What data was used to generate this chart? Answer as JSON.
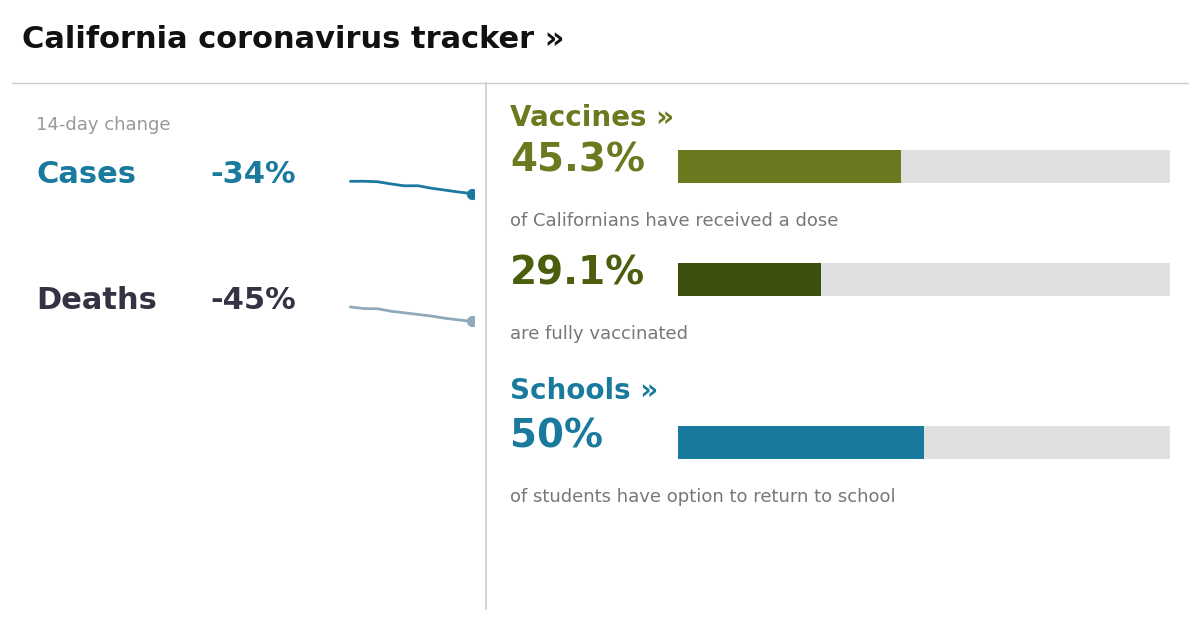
{
  "title": "California coronavirus tracker »",
  "title_fontsize": 22,
  "title_color": "#111111",
  "background_color": "#ffffff",
  "divider_line_color": "#cccccc",
  "left_panel": {
    "subtitle": "14-day change",
    "subtitle_color": "#999999",
    "subtitle_fontsize": 13,
    "rows": [
      {
        "label": "Cases",
        "label_color": "#1a7a9e",
        "label_fontsize": 22,
        "value": "-34%",
        "value_color": "#1a7a9e",
        "value_fontsize": 22,
        "line_color": "#1a7a9e",
        "dot_color": "#1a7a9e",
        "line_noise": [
          0.0,
          0.04,
          0.06,
          0.02,
          -0.01,
          0.03,
          -0.02,
          -0.05,
          -0.08,
          -0.1
        ]
      },
      {
        "label": "Deaths",
        "label_color": "#333344",
        "label_fontsize": 22,
        "value": "-45%",
        "value_color": "#333344",
        "value_fontsize": 22,
        "line_color": "#8faabc",
        "dot_color": "#8faabc",
        "line_noise": [
          0.0,
          -0.02,
          0.01,
          -0.04,
          -0.06,
          -0.08,
          -0.1,
          -0.14,
          -0.16,
          -0.18
        ]
      }
    ]
  },
  "right_panel": {
    "sections": [
      {
        "section_title": "Vaccines »",
        "section_title_color": "#6b7a1e",
        "section_title_fontsize": 20,
        "bars": [
          {
            "pct_text": "45.3%",
            "pct_color": "#6b7a1e",
            "pct_fontsize": 28,
            "value": 45.3,
            "bar_color": "#6b7a1e",
            "bg_color": "#e0e0e0",
            "description": "of Californians have received a dose",
            "desc_color": "#777777",
            "desc_fontsize": 13
          },
          {
            "pct_text": "29.1%",
            "pct_color": "#4a5e0e",
            "pct_fontsize": 28,
            "value": 29.1,
            "bar_color": "#3d5010",
            "bg_color": "#e0e0e0",
            "description": "are fully vaccinated",
            "desc_color": "#777777",
            "desc_fontsize": 13
          }
        ]
      },
      {
        "section_title": "Schools »",
        "section_title_color": "#1a7a9e",
        "section_title_fontsize": 20,
        "bars": [
          {
            "pct_text": "50%",
            "pct_color": "#1a7a9e",
            "pct_fontsize": 28,
            "value": 50.0,
            "bar_color": "#1a7a9e",
            "bg_color": "#e0e0e0",
            "description": "of students have option to return to school",
            "desc_color": "#777777",
            "desc_fontsize": 13
          }
        ]
      }
    ]
  }
}
